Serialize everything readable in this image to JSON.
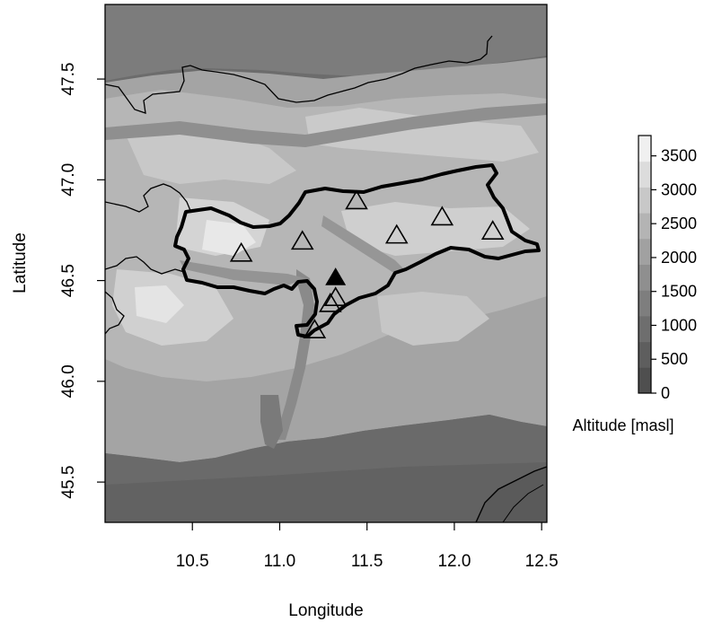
{
  "chart_data": {
    "type": "map",
    "xlabel": "Longitude",
    "ylabel": "Latitude",
    "xlim": [
      10.0,
      12.53
    ],
    "ylim": [
      45.3,
      47.87
    ],
    "x_ticks": [
      "10.5",
      "11.0",
      "11.5",
      "12.0",
      "12.5"
    ],
    "y_ticks": [
      "45.5",
      "46.0",
      "46.5",
      "47.0",
      "47.5"
    ],
    "colorbar": {
      "title": "Altitude [masl]",
      "range": [
        0,
        3800
      ],
      "ticks": [
        "0",
        "500",
        "1000",
        "1500",
        "2000",
        "2500",
        "3000",
        "3500"
      ],
      "colors": [
        "#4f4f4f",
        "#5e5e5e",
        "#6e6e6e",
        "#7e7e7e",
        "#8f8f8f",
        "#a1a1a1",
        "#b4b4b4",
        "#c8c8c8",
        "#dcdcdc",
        "#f0f0f0"
      ]
    },
    "stations_open": [
      {
        "lon": 10.78,
        "lat": 46.63
      },
      {
        "lon": 11.13,
        "lat": 46.69
      },
      {
        "lon": 11.44,
        "lat": 46.89
      },
      {
        "lon": 11.67,
        "lat": 46.72
      },
      {
        "lon": 11.93,
        "lat": 46.81
      },
      {
        "lon": 12.22,
        "lat": 46.74
      },
      {
        "lon": 11.32,
        "lat": 46.41
      },
      {
        "lon": 11.29,
        "lat": 46.38
      },
      {
        "lon": 11.2,
        "lat": 46.25
      }
    ],
    "stations_filled": [
      {
        "lon": 11.32,
        "lat": 46.51
      }
    ]
  }
}
